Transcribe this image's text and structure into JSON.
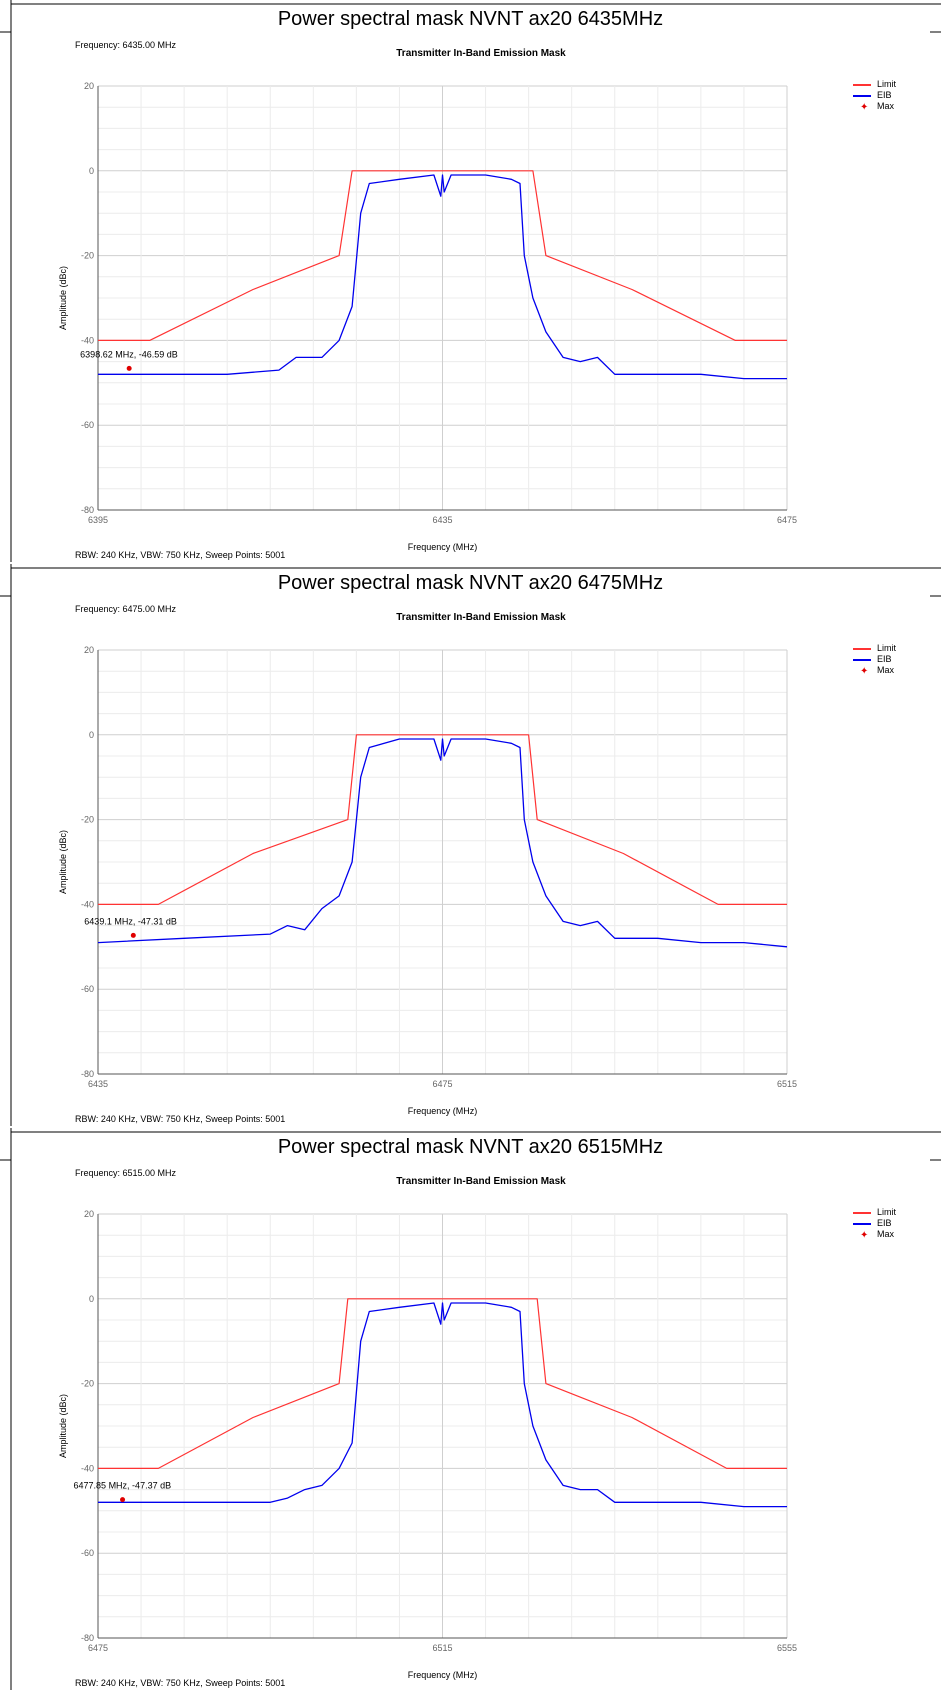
{
  "colors": {
    "limit": "#ff3333",
    "eib": "#0000ee",
    "max": "#e00000",
    "grid": "#dcdcdc",
    "frame": "#555555"
  },
  "legend": {
    "limit": "Limit",
    "eib": "EIB",
    "max": "Max"
  },
  "panels": [
    {
      "title": "Power spectral mask NVNT ax20 6435MHz",
      "frequency_label": "Frequency: 6435.00 MHz",
      "footer": "RBW: 240 KHz,  VBW: 750 KHz,  Sweep Points: 5001"
    },
    {
      "title": "Power spectral mask NVNT ax20 6475MHz",
      "frequency_label": "Frequency: 6475.00 MHz",
      "footer": "RBW: 240 KHz,  VBW: 750 KHz,  Sweep Points: 5001"
    },
    {
      "title": "Power spectral mask NVNT ax20 6515MHz",
      "frequency_label": "Frequency: 6515.00 MHz",
      "footer": "RBW: 240 KHz,  VBW: 750 KHz,  Sweep Points: 5001"
    }
  ],
  "chart_data": [
    {
      "type": "line",
      "title": "Transmitter In-Band Emission Mask",
      "xlabel": "Frequency (MHz)",
      "ylabel": "Amplitude (dBc)",
      "xlim": [
        6395,
        6475
      ],
      "ylim": [
        -80,
        20
      ],
      "xticks": [
        "6395",
        "6435",
        "6475"
      ],
      "yticks": [
        "20",
        "0",
        "-20",
        "-40",
        "-60",
        "-80"
      ],
      "grid": true,
      "legend_position": "top-right",
      "series": [
        {
          "name": "Limit",
          "x": [
            6395,
            6401,
            6413,
            6423,
            6424.5,
            6445.5,
            6447,
            6457,
            6469,
            6475
          ],
          "y": [
            -40,
            -40,
            -28,
            -20,
            0,
            0,
            -20,
            -28,
            -40,
            -40
          ]
        },
        {
          "name": "EIB",
          "x": [
            6395,
            6404,
            6410,
            6416,
            6418,
            6421,
            6423,
            6424.5,
            6425.5,
            6426.5,
            6430,
            6434,
            6434.8,
            6435,
            6435.2,
            6436,
            6440,
            6443,
            6444,
            6444.5,
            6445.5,
            6447,
            6449,
            6451,
            6453,
            6455,
            6460,
            6465,
            6470,
            6475
          ],
          "y": [
            -48,
            -48,
            -48,
            -47,
            -44,
            -44,
            -40,
            -32,
            -10,
            -3,
            -2,
            -1,
            -6,
            -1,
            -5,
            -1,
            -1,
            -2,
            -3,
            -20,
            -30,
            -38,
            -44,
            -45,
            -44,
            -48,
            -48,
            -48,
            -49,
            -49
          ]
        }
      ],
      "max_marker": {
        "x": 6398.62,
        "y": -46.59,
        "label": "6398.62 MHz, -46.59 dB"
      }
    },
    {
      "type": "line",
      "title": "Transmitter In-Band Emission Mask",
      "xlabel": "Frequency (MHz)",
      "ylabel": "Amplitude (dBc)",
      "xlim": [
        6435,
        6515
      ],
      "ylim": [
        -80,
        20
      ],
      "xticks": [
        "6435",
        "6475",
        "6515"
      ],
      "yticks": [
        "20",
        "0",
        "-20",
        "-40",
        "-60",
        "-80"
      ],
      "grid": true,
      "legend_position": "top-right",
      "series": [
        {
          "name": "Limit",
          "x": [
            6435,
            6442,
            6453,
            6464,
            6465,
            6485,
            6486,
            6496,
            6507,
            6515
          ],
          "y": [
            -40,
            -40,
            -28,
            -20,
            0,
            0,
            -20,
            -28,
            -40,
            -40
          ]
        },
        {
          "name": "EIB",
          "x": [
            6435,
            6445,
            6455,
            6457,
            6459,
            6461,
            6463,
            6464.5,
            6465.5,
            6466.5,
            6470,
            6474,
            6474.8,
            6475,
            6475.2,
            6476,
            6480,
            6483,
            6484,
            6484.5,
            6485.5,
            6487,
            6489,
            6491,
            6493,
            6495,
            6500,
            6505,
            6510,
            6515
          ],
          "y": [
            -49,
            -48,
            -47,
            -45,
            -46,
            -41,
            -38,
            -30,
            -10,
            -3,
            -1,
            -1,
            -6,
            -1,
            -5,
            -1,
            -1,
            -2,
            -3,
            -20,
            -30,
            -38,
            -44,
            -45,
            -44,
            -48,
            -48,
            -49,
            -49,
            -50
          ]
        }
      ],
      "max_marker": {
        "x": 6439.1,
        "y": -47.31,
        "label": "6439.1 MHz, -47.31 dB"
      }
    },
    {
      "type": "line",
      "title": "Transmitter In-Band Emission Mask",
      "xlabel": "Frequency (MHz)",
      "ylabel": "Amplitude (dBc)",
      "xlim": [
        6475,
        6555
      ],
      "ylim": [
        -80,
        20
      ],
      "xticks": [
        "6475",
        "6515",
        "6555"
      ],
      "yticks": [
        "20",
        "0",
        "-20",
        "-40",
        "-60",
        "-80"
      ],
      "grid": true,
      "legend_position": "top-right",
      "series": [
        {
          "name": "Limit",
          "x": [
            6475,
            6482,
            6493,
            6503,
            6504,
            6526,
            6527,
            6537,
            6548,
            6555
          ],
          "y": [
            -40,
            -40,
            -28,
            -20,
            0,
            0,
            -20,
            -28,
            -40,
            -40
          ]
        },
        {
          "name": "EIB",
          "x": [
            6475,
            6485,
            6495,
            6497,
            6499,
            6501,
            6503,
            6504.5,
            6505.5,
            6506.5,
            6510,
            6514,
            6514.8,
            6515,
            6515.2,
            6516,
            6520,
            6523,
            6524,
            6524.5,
            6525.5,
            6527,
            6529,
            6531,
            6533,
            6535,
            6540,
            6545,
            6550,
            6555
          ],
          "y": [
            -48,
            -48,
            -48,
            -47,
            -45,
            -44,
            -40,
            -34,
            -10,
            -3,
            -2,
            -1,
            -6,
            -1,
            -5,
            -1,
            -1,
            -2,
            -3,
            -20,
            -30,
            -38,
            -44,
            -45,
            -45,
            -48,
            -48,
            -48,
            -49,
            -49
          ]
        }
      ],
      "max_marker": {
        "x": 6477.85,
        "y": -47.37,
        "label": "6477.85 MHz, -47.37 dB"
      }
    }
  ]
}
